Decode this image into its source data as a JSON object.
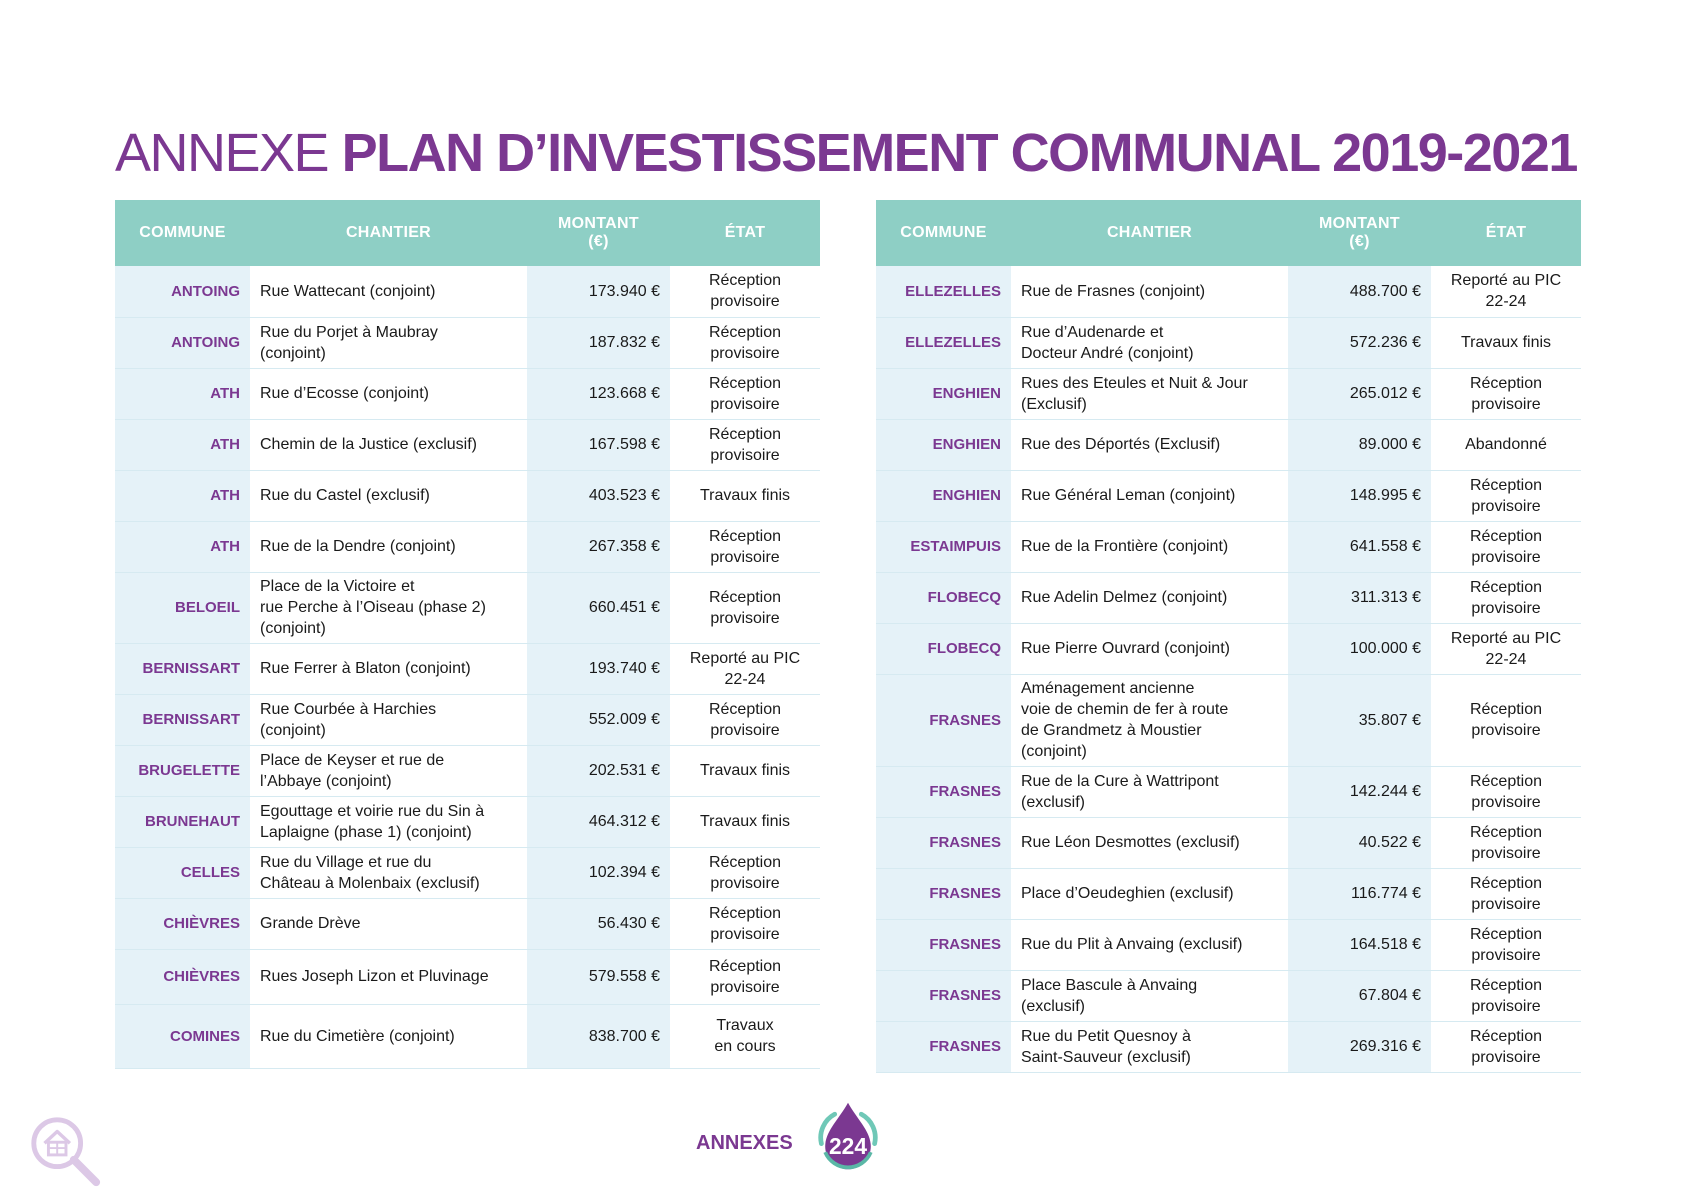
{
  "title": {
    "prefix": "ANNEXE",
    "main": "PLAN D’INVESTISSEMENT COMMUNAL 2019-2021"
  },
  "headers": {
    "commune": "COMMUNE",
    "chantier": "CHANTIER",
    "montant": "MONTANT",
    "montant_unit": "(€)",
    "etat": "ÉTAT"
  },
  "left_rows": [
    {
      "commune": "ANTOING",
      "chantier": [
        "Rue Wattecant (conjoint)"
      ],
      "montant": "173.940 €",
      "etat": [
        "Réception",
        "provisoire"
      ]
    },
    {
      "commune": "ANTOING",
      "chantier": [
        "Rue du Porjet à Maubray",
        "(conjoint)"
      ],
      "montant": "187.832 €",
      "etat": [
        "Réception",
        "provisoire"
      ]
    },
    {
      "commune": "ATH",
      "chantier": [
        "Rue d’Ecosse (conjoint)"
      ],
      "montant": "123.668 €",
      "etat": [
        "Réception",
        "provisoire"
      ]
    },
    {
      "commune": "ATH",
      "chantier": [
        "Chemin de la Justice (exclusif)"
      ],
      "montant": "167.598 €",
      "etat": [
        "Réception",
        "provisoire"
      ]
    },
    {
      "commune": "ATH",
      "chantier": [
        "Rue du Castel (exclusif)"
      ],
      "montant": "403.523 €",
      "etat": [
        "Travaux finis"
      ]
    },
    {
      "commune": "ATH",
      "chantier": [
        "Rue de la Dendre (conjoint)"
      ],
      "montant": "267.358 €",
      "etat": [
        "Réception",
        "provisoire"
      ]
    },
    {
      "commune": "BELOEIL",
      "chantier": [
        "Place de la Victoire et",
        "rue Perche à l’Oiseau (phase 2)",
        "(conjoint)"
      ],
      "montant": "660.451 €",
      "etat": [
        "Réception",
        "provisoire"
      ]
    },
    {
      "commune": "BERNISSART",
      "chantier": [
        "Rue Ferrer à Blaton (conjoint)"
      ],
      "montant": "193.740 €",
      "etat": [
        "Reporté au PIC",
        "22-24"
      ]
    },
    {
      "commune": "BERNISSART",
      "chantier": [
        "Rue Courbée à Harchies",
        "(conjoint)"
      ],
      "montant": "552.009 €",
      "etat": [
        "Réception",
        "provisoire"
      ]
    },
    {
      "commune": "BRUGELETTE",
      "chantier": [
        "Place de Keyser et rue de",
        "l’Abbaye (conjoint)"
      ],
      "montant": "202.531 €",
      "etat": [
        "Travaux finis"
      ]
    },
    {
      "commune": "BRUNEHAUT",
      "chantier": [
        "Egouttage et voirie rue du Sin à",
        "Laplaigne (phase 1) (conjoint)"
      ],
      "montant": "464.312 €",
      "etat": [
        "Travaux finis"
      ]
    },
    {
      "commune": "CELLES",
      "chantier": [
        "Rue du Village et rue du",
        "Château à Molenbaix (exclusif)"
      ],
      "montant": "102.394 €",
      "etat": [
        "Réception",
        "provisoire"
      ]
    },
    {
      "commune": "CHIÈVRES",
      "chantier": [
        "Grande Drève"
      ],
      "montant": "56.430 €",
      "etat": [
        "Réception",
        "provisoire"
      ]
    },
    {
      "commune": "CHIÈVRES",
      "chantier": [
        "Rues Joseph Lizon et Pluvinage"
      ],
      "montant": "579.558 €",
      "etat": [
        "Réception",
        "provisoire"
      ]
    },
    {
      "commune": "COMINES",
      "chantier": [
        "Rue du Cimetière (conjoint)"
      ],
      "montant": "838.700 €",
      "etat": [
        "Travaux",
        "en cours"
      ]
    }
  ],
  "right_rows": [
    {
      "commune": "ELLEZELLES",
      "chantier": [
        "Rue de Frasnes (conjoint)"
      ],
      "montant": "488.700 €",
      "etat": [
        "Reporté au PIC",
        "22-24"
      ]
    },
    {
      "commune": "ELLEZELLES",
      "chantier": [
        "Rue d’Audenarde et",
        "Docteur André (conjoint)"
      ],
      "montant": "572.236 €",
      "etat": [
        "Travaux finis"
      ]
    },
    {
      "commune": "ENGHIEN",
      "chantier": [
        "Rues des Eteules et Nuit & Jour",
        "(Exclusif)"
      ],
      "montant": "265.012 €",
      "etat": [
        "Réception",
        "provisoire"
      ]
    },
    {
      "commune": "ENGHIEN",
      "chantier": [
        "Rue des Déportés (Exclusif)"
      ],
      "montant": "89.000 €",
      "etat": [
        "Abandonné"
      ]
    },
    {
      "commune": "ENGHIEN",
      "chantier": [
        "Rue Général Leman (conjoint)"
      ],
      "montant": "148.995 €",
      "etat": [
        "Réception",
        "provisoire"
      ]
    },
    {
      "commune": "ESTAIMPUIS",
      "chantier": [
        "Rue de la Frontière (conjoint)"
      ],
      "montant": "641.558 €",
      "etat": [
        "Réception",
        "provisoire"
      ]
    },
    {
      "commune": "FLOBECQ",
      "chantier": [
        "Rue Adelin Delmez (conjoint)"
      ],
      "montant": "311.313 €",
      "etat": [
        "Réception",
        "provisoire"
      ]
    },
    {
      "commune": "FLOBECQ",
      "chantier": [
        "Rue Pierre Ouvrard (conjoint)"
      ],
      "montant": "100.000 €",
      "etat": [
        "Reporté au PIC",
        "22-24"
      ]
    },
    {
      "commune": "FRASNES",
      "chantier": [
        "Aménagement ancienne",
        "voie de chemin de fer à route",
        "de Grandmetz à Moustier",
        "(conjoint)"
      ],
      "montant": "35.807 €",
      "etat": [
        "Réception",
        "provisoire"
      ]
    },
    {
      "commune": "FRASNES",
      "chantier": [
        "Rue de la Cure à Wattripont",
        "(exclusif)"
      ],
      "montant": "142.244 €",
      "etat": [
        "Réception",
        "provisoire"
      ]
    },
    {
      "commune": "FRASNES",
      "chantier": [
        "Rue Léon Desmottes (exclusif)"
      ],
      "montant": "40.522 €",
      "etat": [
        "Réception",
        "provisoire"
      ]
    },
    {
      "commune": "FRASNES",
      "chantier": [
        "Place d’Oeudeghien (exclusif)"
      ],
      "montant": "116.774 €",
      "etat": [
        "Réception",
        "provisoire"
      ]
    },
    {
      "commune": "FRASNES",
      "chantier": [
        "Rue du Plit à Anvaing (exclusif)"
      ],
      "montant": "164.518 €",
      "etat": [
        "Réception",
        "provisoire"
      ]
    },
    {
      "commune": "FRASNES",
      "chantier": [
        "Place Bascule à Anvaing",
        "(exclusif)"
      ],
      "montant": "67.804 €",
      "etat": [
        "Réception",
        "provisoire"
      ]
    },
    {
      "commune": "FRASNES",
      "chantier": [
        "Rue du Petit Quesnoy à",
        "Saint-Sauveur (exclusif)"
      ],
      "montant": "269.316 €",
      "etat": [
        "Réception",
        "provisoire"
      ]
    }
  ],
  "footer": {
    "section_label": "ANNEXES",
    "page_number": "224"
  },
  "colors": {
    "purple": "#7b3891",
    "teal": "#8ecfc5",
    "light_blue": "#e5f2f8"
  },
  "icons": {
    "corner": "house-magnifier-icon",
    "page_badge": "water-drop-icon"
  }
}
